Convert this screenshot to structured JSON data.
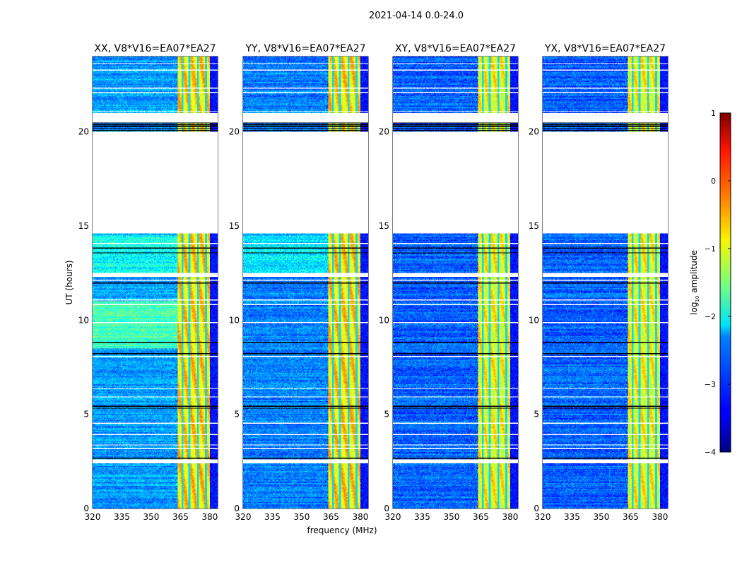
{
  "chart_data": {
    "type": "heatmap",
    "suptitle": "2021-04-14 0.0-24.0",
    "xlabel": "frequency (MHz)",
    "ylabel": "UT (hours)",
    "xlim": [
      320,
      384
    ],
    "ylim": [
      0,
      24
    ],
    "xticks": [
      "320",
      "335",
      "350",
      "365",
      "380"
    ],
    "yticks": [
      "0",
      "5",
      "10",
      "15",
      "20"
    ],
    "panels": [
      {
        "title": "XX, V8*V16=EA07*EA27",
        "background": -2.6
      },
      {
        "title": "YY, V8*V16=EA07*EA27",
        "background": -2.75
      },
      {
        "title": "XY, V8*V16=EA07*EA27",
        "background": -2.9
      },
      {
        "title": "YX, V8*V16=EA07*EA27",
        "background": -2.9
      }
    ],
    "rfi_band_MHz": [
      363.5,
      380
    ],
    "flag_gaps_hours": [
      [
        14.6,
        20.0
      ],
      [
        20.5,
        21.0
      ],
      [
        2.4,
        2.6
      ],
      [
        12.3,
        12.5
      ]
    ],
    "colorbar": {
      "label": "log10 amplitude",
      "label_main": "log",
      "label_sub": "10",
      "label_rest": " amplitude",
      "range": [
        -4,
        1
      ],
      "ticks": [
        "1",
        "0",
        "−1",
        "−2",
        "−3",
        "−4"
      ],
      "colormap": "jet"
    }
  }
}
